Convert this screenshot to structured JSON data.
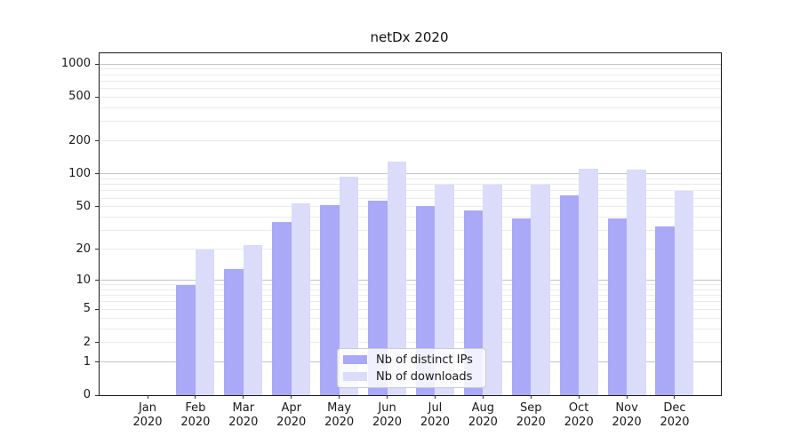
{
  "chart_data": {
    "type": "bar",
    "title": "netDx 2020",
    "categories": [
      "Jan",
      "Feb",
      "Mar",
      "Apr",
      "May",
      "Jun",
      "Jul",
      "Aug",
      "Sep",
      "Oct",
      "Nov",
      "Dec"
    ],
    "x_year": "2020",
    "series": [
      {
        "name": "Nb of distinct IPs",
        "color": "#a9a9f7",
        "values": [
          0,
          9,
          13,
          36,
          52,
          57,
          51,
          46,
          39,
          64,
          39,
          33
        ]
      },
      {
        "name": "Nb of downloads",
        "color": "#dbdbfa",
        "values": [
          0,
          20,
          22,
          54,
          95,
          130,
          79,
          80,
          79,
          112,
          110,
          70
        ]
      }
    ],
    "yscale": "log1p",
    "ylim": [
      0,
      1250
    ],
    "y_tick_values": [
      0,
      1,
      2,
      5,
      10,
      20,
      50,
      100,
      200,
      500,
      1000
    ],
    "y_major_gridlines": [
      1,
      10,
      100,
      1000
    ],
    "y_minor_gridlines": [
      2,
      3,
      4,
      5,
      6,
      7,
      8,
      9,
      20,
      30,
      40,
      50,
      60,
      70,
      80,
      90,
      200,
      300,
      400,
      500,
      600,
      700,
      800,
      900
    ],
    "grid": "both",
    "legend_position": "lower center",
    "xlabel": "",
    "ylabel": ""
  },
  "colors": {
    "grid_major": "#c3c3c3",
    "grid_minor": "#ebebeb",
    "spine": "#1a1a1a",
    "legend_border": "#cccccc"
  }
}
